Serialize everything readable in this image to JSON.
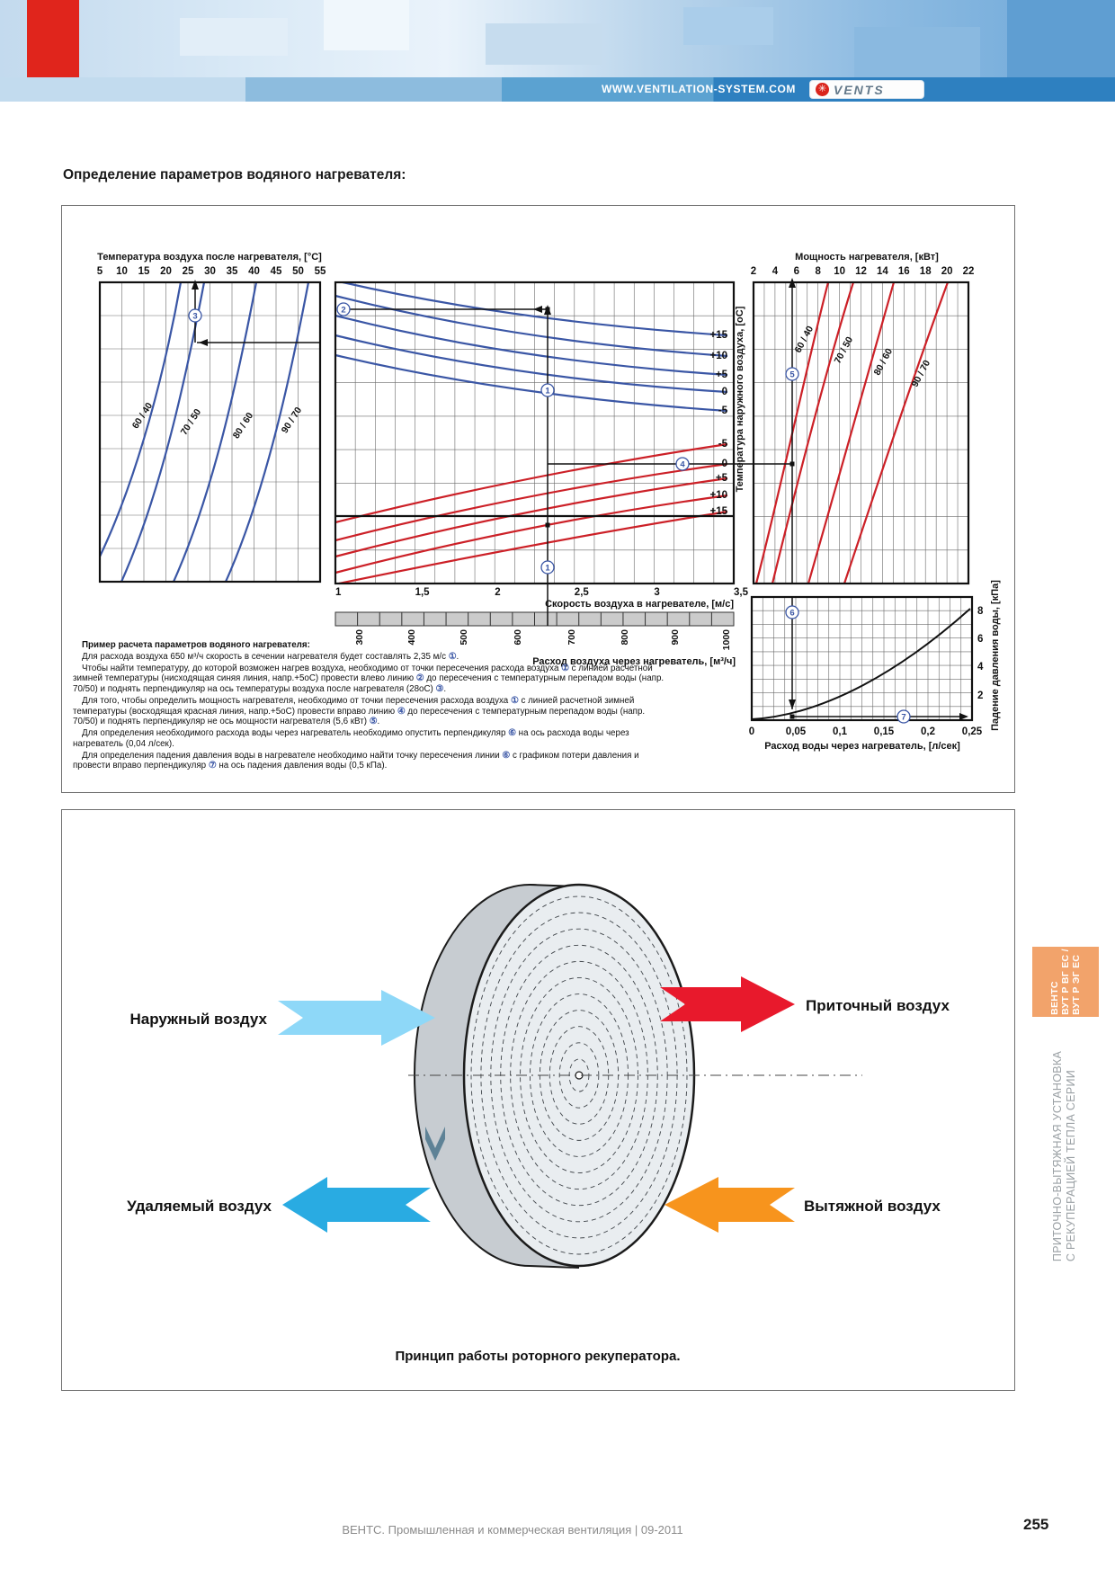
{
  "header": {
    "url": "WWW.VENTILATION-SYSTEM.COM",
    "brand": "VENTS"
  },
  "title": "Определение параметров водяного нагревателя:",
  "nomogram": {
    "colors": {
      "blue_curves": "#3a56a5",
      "red_curves": "#cc2027",
      "marker_blue": "#3a56a5"
    },
    "left_panel": {
      "axis_title": "Температура воздуха после нагревателя, [°C]",
      "ticks": [
        "5",
        "10",
        "15",
        "20",
        "25",
        "30",
        "35",
        "40",
        "45",
        "50",
        "55"
      ],
      "curve_labels": [
        "60 / 40",
        "70 / 50",
        "80 / 60",
        "90 / 70"
      ]
    },
    "middle_panel": {
      "blue_labels": [
        "+15",
        "+10",
        "+5",
        "0",
        "-5"
      ],
      "red_labels": [
        "-5",
        "0",
        "+5",
        "+10",
        "+15"
      ],
      "right_axis_title": "Температура наружного воздуха, [оС]",
      "bottom_axis_title": "Скорость воздуха в нагревателе, [м/с]",
      "bottom_ticks": [
        "1",
        "1,5",
        "2",
        "2,5",
        "3",
        "3,5"
      ],
      "flow_axis_title": "Расход воздуха через нагреватель, [м³/ч]",
      "flow_ticks": [
        "300",
        "400",
        "500",
        "600",
        "700",
        "800",
        "900",
        "1000"
      ]
    },
    "right_panel": {
      "axis_title": "Мощность нагревателя, [кВт]",
      "ticks": [
        "2",
        "4",
        "6",
        "8",
        "10",
        "12",
        "14",
        "16",
        "18",
        "20",
        "22"
      ],
      "curve_labels": [
        "60 / 40",
        "70 / 50",
        "80 / 60",
        "90 / 70"
      ]
    },
    "pressure_panel": {
      "y_axis_title": "Падение давления воды, [кПа]",
      "y_ticks": [
        "2",
        "4",
        "6",
        "8"
      ],
      "x_ticks": [
        "0",
        "0,05",
        "0,1",
        "0,15",
        "0,2",
        "0,25"
      ],
      "x_axis_title": "Расход воды через нагреватель, [л/сек]"
    },
    "markers": [
      "1",
      "2",
      "3",
      "4",
      "5",
      "6",
      "7",
      "1"
    ],
    "example": {
      "title": "Пример расчета параметров водяного нагревателя:",
      "paragraphs": [
        "Для расхода воздуха 650 м³/ч скорость в сечении нагревателя будет составлять 2,35 м/с ①.",
        "Чтобы найти температуру, до которой возможен нагрев воздуха, необходимо от точки пересечения расхода воздуха ① с линией расчетной зимней температуры (нисходящая синяя линия, напр.+5оС) провести влево линию ② до пересечения с температурным перепадом воды (напр. 70/50) и поднять перпендикуляр на ось температуры воздуха после нагревателя (28оС) ③.",
        "Для того, чтобы определить мощность нагревателя, необходимо от точки пересечения расхода воздуха ① с линией расчетной зимней температуры (восходящая красная линия, напр.+5оС) провести вправо линию ④ до пересечения с температурным перепадом воды (напр. 70/50) и поднять перпендикуляр не ось мощности нагревателя (5,6 кВт) ⑤.",
        "Для определения необходимого расхода воды через нагреватель необходимо опустить перпендикуляр ⑥ на ось расхода воды через нагреватель (0,04 л/сек).",
        "Для определения падения давления воды в нагревателе необходимо найти точку пересечения линии ⑥ с графиком потери давления и провести вправо перпендикуляр ⑦ на ось падения давления воды (0,5 кПа)."
      ]
    }
  },
  "recuperator": {
    "labels": {
      "outdoor": "Наружный воздух",
      "supply": "Приточный воздух",
      "extract": "Удаляемый воздух",
      "exhaust": "Вытяжной воздух"
    },
    "caption": "Принцип работы роторного рекуператора.",
    "colors": {
      "outdoor": "#8ed8f8",
      "supply": "#e8192c",
      "extract": "#29abe2",
      "exhaust": "#f7941d"
    }
  },
  "sidebar": {
    "tab_lines": [
      "ВЕНТС",
      "ВУТ Р ВГ ЕС /",
      "ВУТ Р ЭГ ЕС"
    ],
    "series_lines": [
      "ПРИТОЧНО-ВЫТЯЖНАЯ УСТАНОВКА",
      "С РЕКУПЕРАЦИЕЙ ТЕПЛА СЕРИИ"
    ],
    "tab_color": "#f2a36b"
  },
  "footer": {
    "text": "ВЕНТС. Промышленная и коммерческая вентиляция | 09-2011",
    "page": "255"
  }
}
